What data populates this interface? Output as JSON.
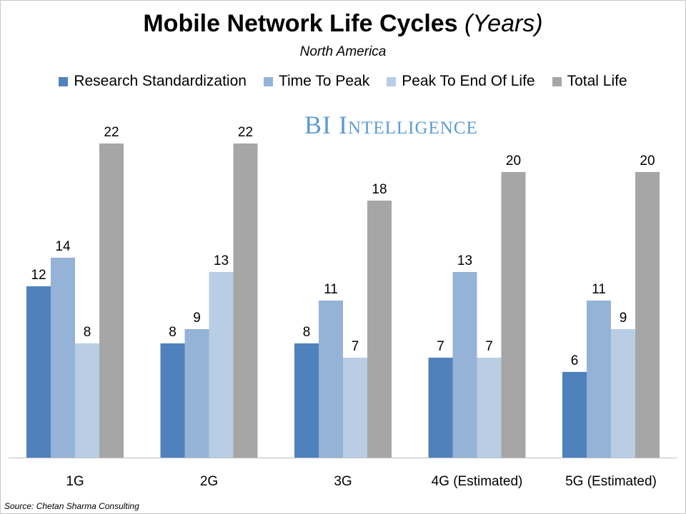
{
  "chart_data": {
    "type": "bar",
    "title": "Mobile Network Life Cycles",
    "title_suffix": "(Years)",
    "subtitle": "North America",
    "categories": [
      "1G",
      "2G",
      "3G",
      "4G (Estimated)",
      "5G (Estimated)"
    ],
    "series": [
      {
        "name": "Research Standardization",
        "color": "#4F81BD",
        "values": [
          12,
          8,
          8,
          7,
          6
        ]
      },
      {
        "name": "Time To Peak",
        "color": "#95B3D7",
        "values": [
          14,
          9,
          11,
          13,
          11
        ]
      },
      {
        "name": "Peak To End Of Life",
        "color": "#B9CDE5",
        "values": [
          8,
          13,
          7,
          7,
          9
        ]
      },
      {
        "name": "Total Life",
        "color": "#A6A6A6",
        "values": [
          22,
          22,
          18,
          20,
          20
        ]
      }
    ],
    "ylim": [
      0,
      22
    ],
    "grid": false,
    "legend": "top",
    "xlabel": "",
    "ylabel": ""
  },
  "watermark": "BI Intelligence",
  "source": "Source: Chetan Sharma Consulting"
}
